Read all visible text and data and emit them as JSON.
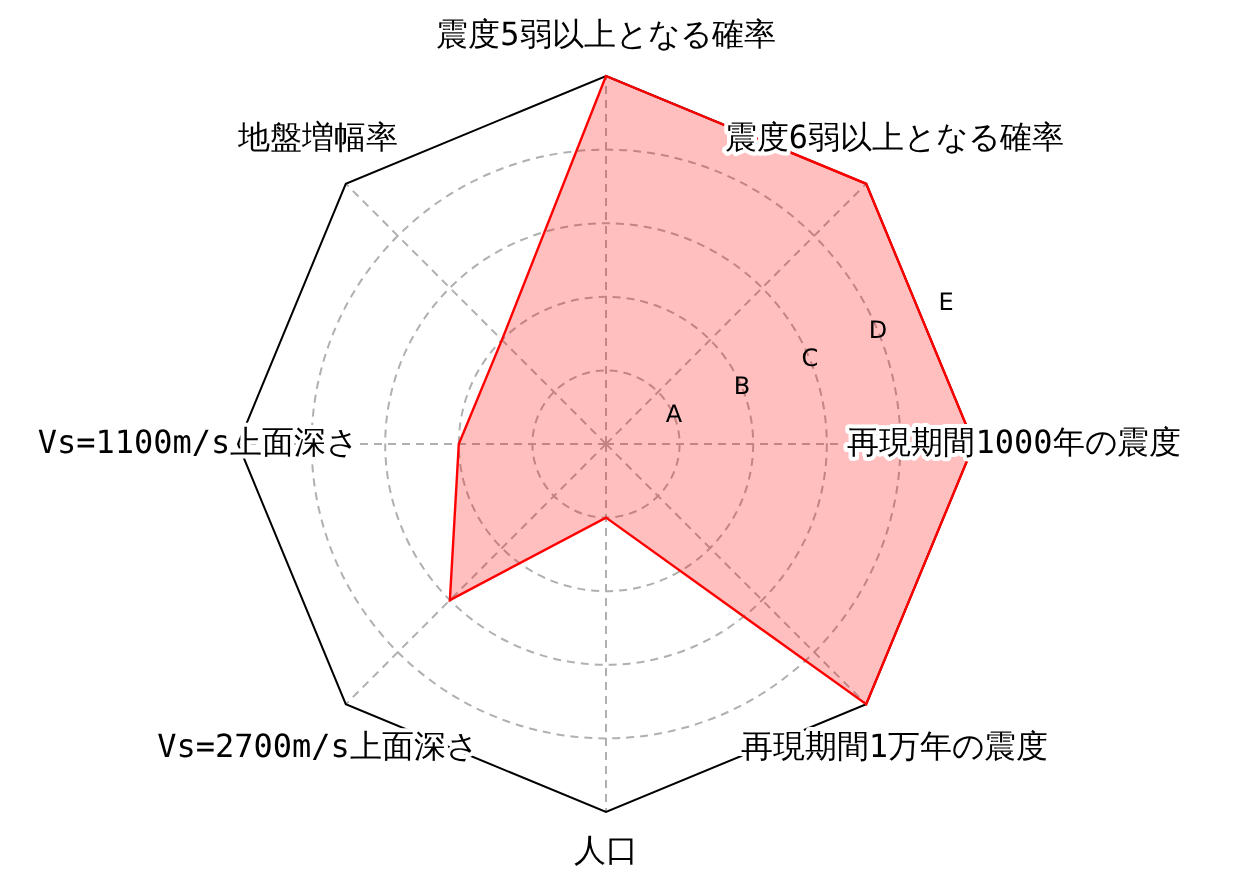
{
  "chart_data": {
    "type": "radar",
    "categories": [
      "震度5弱以上となる確率",
      "震度6弱以上となる確率",
      "再現期間1000年の震度",
      "再現期間1万年の震度",
      "人口",
      "Vs=2700m/s上面深さ",
      "Vs=1100m/s上面深さ",
      "地盤増幅率"
    ],
    "series": [
      {
        "color": "#ff0000",
        "values": [
          5,
          5,
          5,
          5,
          1,
          3,
          2,
          2
        ]
      }
    ],
    "ylim": [
      0,
      5
    ],
    "yticks": [
      {
        "value": 1,
        "label": "A"
      },
      {
        "value": 2,
        "label": "B"
      },
      {
        "value": 3,
        "label": "C"
      },
      {
        "value": 4,
        "label": "D"
      },
      {
        "value": 5,
        "label": "E"
      }
    ],
    "grid": true
  }
}
